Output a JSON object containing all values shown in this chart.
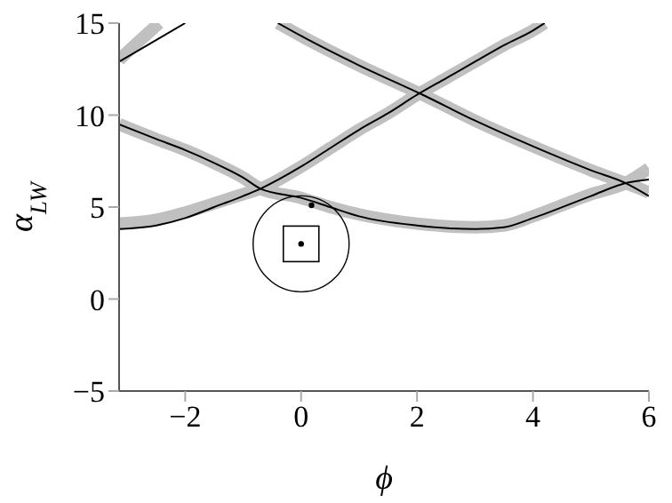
{
  "chart_data": {
    "type": "line",
    "xlabel": "ϕ",
    "ylabel": "α$_{LW}$",
    "xlim": [
      -3.14,
      6
    ],
    "ylim": [
      -5,
      15
    ],
    "xticks": [
      -2,
      0,
      2,
      4,
      6
    ],
    "yticks": [
      -5,
      0,
      5,
      10,
      15
    ],
    "marker": "none",
    "line_style": "solid",
    "series": [
      {
        "color": "#c0c0c0",
        "x": [
          -3.14,
          -2.5,
          -2,
          -1.5,
          -1,
          -0.7,
          0,
          0.5,
          1,
          1.5,
          2,
          2.5,
          3,
          3.5,
          4,
          4.2
        ],
        "values": [
          4.1,
          4.3,
          4.7,
          5.2,
          5.7,
          6,
          7.2,
          8.2,
          9.2,
          10.1,
          11.1,
          12,
          12.9,
          13.8,
          14.6,
          15
        ]
      },
      {
        "color": "#c0c0c0",
        "x": [
          -3.14,
          -2.5,
          -2,
          -1.5,
          -1,
          -0.7,
          0,
          0.5,
          1,
          2,
          3,
          3.5,
          4,
          5,
          5.6,
          6
        ],
        "values": [
          9.5,
          8.7,
          8.1,
          7.4,
          6.6,
          6,
          5.5,
          5,
          4.6,
          4.1,
          3.9,
          4,
          4.5,
          5.7,
          6.3,
          7.1
        ]
      },
      {
        "color": "#c0c0c0",
        "x": [
          -3.14,
          -2.8,
          -2.45
        ],
        "values": [
          13,
          14,
          15
        ]
      },
      {
        "color": "#c0c0c0",
        "x": [
          -0.4,
          0,
          1,
          2.1,
          3,
          4,
          5,
          5.6,
          6
        ],
        "values": [
          15,
          14.3,
          12.7,
          11.1,
          9.7,
          8.3,
          7,
          6.3,
          5.8
        ]
      },
      {
        "color": "#000000",
        "x": [
          -3.14,
          -2.5,
          -2,
          -1.5,
          -1,
          -0.7,
          0,
          0.5,
          1,
          1.5,
          2,
          2.5,
          3,
          3.5,
          4,
          4.2
        ],
        "values": [
          3.8,
          4,
          4.4,
          5,
          5.6,
          6,
          7.2,
          8.2,
          9.2,
          10.1,
          11.1,
          12,
          12.9,
          13.8,
          14.6,
          15
        ]
      },
      {
        "color": "#000000",
        "x": [
          -3.14,
          -2.5,
          -2,
          -1.5,
          -1,
          -0.7,
          0,
          0.5,
          1,
          2,
          3,
          3.5,
          4,
          5,
          5.6,
          6
        ],
        "values": [
          9.5,
          8.7,
          8.1,
          7.4,
          6.6,
          6,
          5.5,
          5,
          4.5,
          4,
          3.8,
          3.9,
          4.4,
          5.6,
          6.3,
          6.5
        ]
      },
      {
        "color": "#000000",
        "x": [
          -3.14,
          -2.6,
          -2
        ],
        "values": [
          12.9,
          13.9,
          15
        ]
      },
      {
        "color": "#000000",
        "x": [
          -0.4,
          0,
          1,
          2.1,
          3,
          4,
          5,
          5.6,
          6
        ],
        "values": [
          15,
          14.3,
          12.7,
          11.1,
          9.7,
          8.3,
          7,
          6.3,
          5.6
        ]
      },
      {
        "type": "scatter",
        "marker": "circle",
        "color": "#000000",
        "x": [
          0,
          0.18
        ],
        "values": [
          3,
          5.1
        ]
      },
      {
        "type": "scatter",
        "marker": "square",
        "color": "#000000",
        "x": [
          0
        ],
        "values": [
          3
        ]
      },
      {
        "type": "bubble",
        "marker": "circle",
        "color": "#000000",
        "x": [
          0
        ],
        "values": [
          3
        ],
        "sizes": [
          1
        ]
      }
    ]
  }
}
